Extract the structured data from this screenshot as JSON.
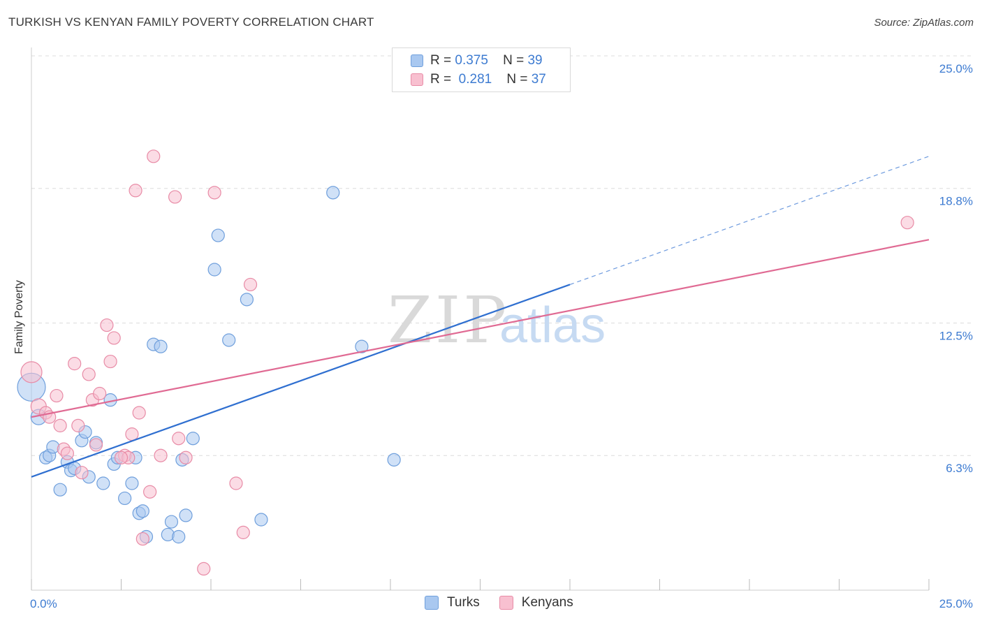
{
  "title": "TURKISH VS KENYAN FAMILY POVERTY CORRELATION CHART",
  "source": "Source: ZipAtlas.com",
  "watermark": {
    "zip": "ZIP",
    "atlas": "atlas"
  },
  "legend": {
    "rows": [
      {
        "r_label": "R =",
        "r_value": "0.375",
        "n_label": "N =",
        "n_value": "39",
        "color": "#a9c8f0",
        "border": "#6f9fdc"
      },
      {
        "r_label": "R =",
        "r_value": "0.281",
        "n_label": "N =",
        "n_value": "37",
        "color": "#f8c0d0",
        "border": "#e88ba6"
      }
    ]
  },
  "bottom_legend": [
    {
      "label": "Turks",
      "color": "#a9c8f0",
      "border": "#6f9fdc"
    },
    {
      "label": "Kenyans",
      "color": "#f8c0d0",
      "border": "#e88ba6"
    }
  ],
  "chart_data": {
    "type": "scatter",
    "title": "TURKISH VS KENYAN FAMILY POVERTY CORRELATION CHART",
    "xlabel": "",
    "ylabel": "Family Poverty",
    "xlim": [
      0,
      25
    ],
    "ylim": [
      0,
      25
    ],
    "x_tick_labels": [
      "0.0%",
      "25.0%"
    ],
    "y_ticks": [
      6.3,
      12.5,
      18.8,
      25.0
    ],
    "y_tick_labels": [
      "6.3%",
      "12.5%",
      "18.8%",
      "25.0%"
    ],
    "grid": true,
    "series": [
      {
        "name": "Turks",
        "color": "#6f9fdc",
        "fill": "#a9c8f0",
        "trend": {
          "x0": 0,
          "y0": 5.3,
          "x1": 15.0,
          "y1": 14.3,
          "dash_to_x": 25.0,
          "dash_to_y": 20.3,
          "color": "#2f6fd0"
        },
        "points": [
          [
            0.0,
            9.5,
            20
          ],
          [
            0.2,
            8.1,
            11
          ],
          [
            0.4,
            6.2,
            9
          ],
          [
            0.5,
            6.3,
            9
          ],
          [
            0.6,
            6.7,
            9
          ],
          [
            0.8,
            4.7,
            9
          ],
          [
            1.0,
            6.0,
            9
          ],
          [
            1.1,
            5.6,
            9
          ],
          [
            1.2,
            5.7,
            9
          ],
          [
            1.4,
            7.0,
            9
          ],
          [
            1.5,
            7.4,
            9
          ],
          [
            1.6,
            5.3,
            9
          ],
          [
            1.8,
            6.9,
            9
          ],
          [
            2.0,
            5.0,
            9
          ],
          [
            2.2,
            8.9,
            9
          ],
          [
            2.3,
            5.9,
            9
          ],
          [
            2.4,
            6.2,
            9
          ],
          [
            2.6,
            4.3,
            9
          ],
          [
            2.8,
            5.0,
            9
          ],
          [
            2.9,
            6.2,
            9
          ],
          [
            3.0,
            3.6,
            9
          ],
          [
            3.1,
            3.7,
            9
          ],
          [
            3.2,
            2.5,
            9
          ],
          [
            3.4,
            11.5,
            9
          ],
          [
            3.6,
            11.4,
            9
          ],
          [
            3.8,
            2.6,
            9
          ],
          [
            3.9,
            3.2,
            9
          ],
          [
            4.1,
            2.5,
            9
          ],
          [
            4.2,
            6.1,
            9
          ],
          [
            4.3,
            3.5,
            9
          ],
          [
            4.5,
            7.1,
            9
          ],
          [
            5.1,
            15.0,
            9
          ],
          [
            5.2,
            16.6,
            9
          ],
          [
            5.5,
            11.7,
            9
          ],
          [
            6.0,
            13.6,
            9
          ],
          [
            6.4,
            3.3,
            9
          ],
          [
            8.4,
            18.6,
            9
          ],
          [
            9.2,
            11.4,
            9
          ],
          [
            10.1,
            6.1,
            9
          ]
        ]
      },
      {
        "name": "Kenyans",
        "color": "#e88ba6",
        "fill": "#f8c0d0",
        "trend": {
          "x0": 0,
          "y0": 8.1,
          "x1": 25.0,
          "y1": 16.4,
          "color": "#e06a93"
        },
        "points": [
          [
            0.0,
            10.2,
            15
          ],
          [
            0.2,
            8.6,
            11
          ],
          [
            0.4,
            8.3,
            9
          ],
          [
            0.5,
            8.1,
            9
          ],
          [
            0.7,
            9.1,
            9
          ],
          [
            0.8,
            7.7,
            9
          ],
          [
            0.9,
            6.6,
            9
          ],
          [
            1.0,
            6.4,
            9
          ],
          [
            1.2,
            10.6,
            9
          ],
          [
            1.3,
            7.7,
            9
          ],
          [
            1.4,
            5.5,
            9
          ],
          [
            1.6,
            10.1,
            9
          ],
          [
            1.7,
            8.9,
            9
          ],
          [
            1.8,
            6.8,
            9
          ],
          [
            1.9,
            9.2,
            9
          ],
          [
            2.1,
            12.4,
            9
          ],
          [
            2.2,
            10.7,
            9
          ],
          [
            2.3,
            11.8,
            9
          ],
          [
            2.6,
            6.3,
            9
          ],
          [
            2.7,
            6.2,
            9
          ],
          [
            2.8,
            7.3,
            9
          ],
          [
            2.9,
            18.7,
            9
          ],
          [
            3.0,
            8.3,
            9
          ],
          [
            3.1,
            2.4,
            9
          ],
          [
            3.3,
            4.6,
            9
          ],
          [
            3.4,
            20.3,
            9
          ],
          [
            3.6,
            6.3,
            9
          ],
          [
            4.0,
            18.4,
            9
          ],
          [
            4.1,
            7.1,
            9
          ],
          [
            4.3,
            6.2,
            9
          ],
          [
            4.8,
            1.0,
            9
          ],
          [
            5.1,
            18.6,
            9
          ],
          [
            5.7,
            5.0,
            9
          ],
          [
            5.9,
            2.7,
            9
          ],
          [
            6.1,
            14.3,
            9
          ],
          [
            24.4,
            17.2,
            9
          ],
          [
            2.5,
            6.2,
            9
          ]
        ]
      }
    ]
  }
}
